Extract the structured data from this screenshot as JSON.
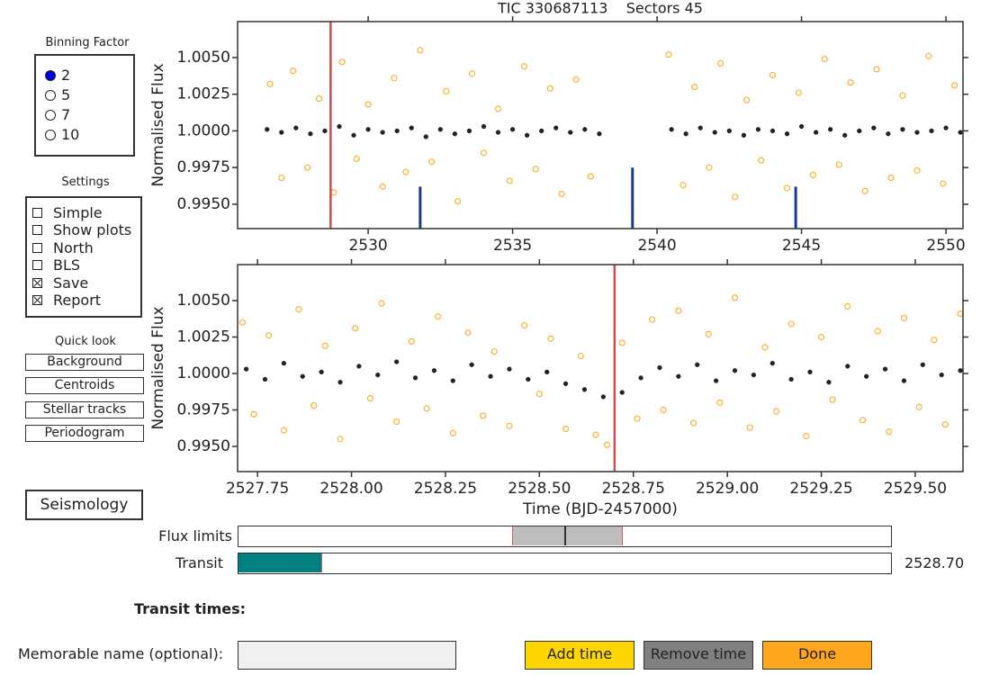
{
  "chart_data": [
    {
      "type": "scatter",
      "title": "TIC 330687113    Sectors 45",
      "ylabel": "Normalised Flux",
      "xlim": [
        2525.48,
        2550.59
      ],
      "ylim": [
        0.99334,
        1.00745
      ],
      "xticks": [
        2530,
        2535,
        2540,
        2545,
        2550
      ],
      "yticks": [
        {
          "value": 0.995,
          "label": "0.9950"
        },
        {
          "value": 0.9975,
          "label": "0.9975"
        },
        {
          "value": 1.0,
          "label": "1.0000"
        },
        {
          "value": 1.0025,
          "label": "1.0025"
        },
        {
          "value": 1.005,
          "label": "1.0050"
        }
      ],
      "series": [
        {
          "color": "#ffb030",
          "marker": "open",
          "x": [
            2526.6,
            2527.0,
            2527.4,
            2527.9,
            2528.3,
            2528.8,
            2529.1,
            2529.6,
            2530.0,
            2530.5,
            2530.9,
            2531.3,
            2531.8,
            2532.2,
            2532.7,
            2533.1,
            2533.6,
            2534.0,
            2534.5,
            2534.9,
            2535.4,
            2535.8,
            2536.3,
            2536.7,
            2537.2,
            2537.7,
            2540.4,
            2540.9,
            2541.3,
            2541.8,
            2542.2,
            2542.7,
            2543.1,
            2543.6,
            2544.0,
            2544.5,
            2544.9,
            2545.4,
            2545.8,
            2546.3,
            2546.7,
            2547.2,
            2547.6,
            2548.1,
            2548.5,
            2549.0,
            2549.4,
            2549.9,
            2550.3
          ],
          "values": [
            1.0032,
            0.9968,
            1.0041,
            0.9975,
            1.0022,
            0.9958,
            1.0047,
            0.9981,
            1.0018,
            0.9962,
            1.0036,
            0.9972,
            1.0055,
            0.9979,
            1.0027,
            0.9952,
            1.0039,
            0.9985,
            1.0015,
            0.9966,
            1.0044,
            0.9974,
            1.0029,
            0.9957,
            1.0035,
            0.9969,
            1.0052,
            0.9963,
            1.003,
            0.9975,
            1.0046,
            0.9955,
            1.0021,
            0.998,
            1.0038,
            0.9961,
            1.0026,
            0.997,
            1.0049,
            0.9977,
            1.0033,
            0.9959,
            1.0042,
            0.9968,
            1.0024,
            0.9973,
            1.0051,
            0.9964,
            1.0031
          ]
        },
        {
          "color": "#222222",
          "marker": "filled",
          "x": [
            2526.5,
            2527.0,
            2527.5,
            2528.0,
            2528.5,
            2529.0,
            2529.5,
            2530.0,
            2530.5,
            2531.0,
            2531.5,
            2532.0,
            2532.5,
            2533.0,
            2533.5,
            2534.0,
            2534.5,
            2535.0,
            2535.5,
            2536.0,
            2536.5,
            2537.0,
            2537.5,
            2538.0,
            2540.5,
            2541.0,
            2541.5,
            2542.0,
            2542.5,
            2543.0,
            2543.5,
            2544.0,
            2544.5,
            2545.0,
            2545.5,
            2546.0,
            2546.5,
            2547.0,
            2547.5,
            2548.0,
            2548.5,
            2549.0,
            2549.5,
            2550.0,
            2550.5
          ],
          "values": [
            1.0001,
            0.9999,
            1.0002,
            0.9998,
            1.0,
            1.0003,
            0.9997,
            1.0001,
            0.9999,
            1.0,
            1.0002,
            0.9996,
            1.0001,
            0.9998,
            1.0,
            1.0003,
            0.9999,
            1.0001,
            0.9997,
            1.0,
            1.0002,
            0.9999,
            1.0001,
            0.9998,
            1.0001,
            0.9998,
            1.0002,
            0.9999,
            1.0,
            0.9997,
            1.0001,
            1.0,
            0.9998,
            1.0003,
            0.9999,
            1.0001,
            0.9997,
            1.0,
            1.0002,
            0.9998,
            1.0001,
            0.9999,
            1.0,
            1.0002,
            0.9999
          ]
        }
      ],
      "vlines": {
        "color": "#c85050",
        "x": [
          2528.7
        ]
      },
      "transit_markers": {
        "color": "#1a3a8a",
        "x": [
          2531.8,
          2539.15,
          2544.8
        ],
        "values": [
          0.9962,
          0.9975,
          0.9962
        ]
      }
    },
    {
      "type": "scatter",
      "ylabel": "Normalised Flux",
      "xlabel": "Time (BJD-2457000)",
      "xlim": [
        2527.697,
        2529.627
      ],
      "ylim": [
        0.99327,
        1.00747
      ],
      "xticks": [
        2527.75,
        {
          "value": 2528.0,
          "label": "2528.00"
        },
        2528.25,
        {
          "value": 2528.5,
          "label": "2528.50"
        },
        2528.75,
        {
          "value": 2529.0,
          "label": "2529.00"
        },
        2529.25,
        {
          "value": 2529.5,
          "label": "2529.50"
        }
      ],
      "yticks": [
        {
          "value": 0.995,
          "label": "0.9950"
        },
        {
          "value": 0.9975,
          "label": "0.9975"
        },
        {
          "value": 1.0,
          "label": "1.0000"
        },
        {
          "value": 1.0025,
          "label": "1.0025"
        },
        {
          "value": 1.005,
          "label": "1.0050"
        }
      ],
      "series": [
        {
          "color": "#ffb030",
          "marker": "open",
          "x": [
            2527.71,
            2527.74,
            2527.78,
            2527.82,
            2527.86,
            2527.9,
            2527.93,
            2527.97,
            2528.01,
            2528.05,
            2528.08,
            2528.12,
            2528.16,
            2528.2,
            2528.23,
            2528.27,
            2528.31,
            2528.35,
            2528.38,
            2528.42,
            2528.46,
            2528.5,
            2528.53,
            2528.57,
            2528.61,
            2528.65,
            2528.68,
            2528.72,
            2528.76,
            2528.8,
            2528.83,
            2528.87,
            2528.91,
            2528.95,
            2528.98,
            2529.02,
            2529.06,
            2529.1,
            2529.13,
            2529.17,
            2529.21,
            2529.25,
            2529.28,
            2529.32,
            2529.36,
            2529.4,
            2529.43,
            2529.47,
            2529.51,
            2529.55,
            2529.58,
            2529.62
          ],
          "values": [
            1.0035,
            0.9972,
            1.0026,
            0.9961,
            1.0044,
            0.9978,
            1.0019,
            0.9955,
            1.0031,
            0.9983,
            1.0048,
            0.9967,
            1.0022,
            0.9976,
            1.0039,
            0.9959,
            1.0028,
            0.9971,
            1.0015,
            0.9964,
            1.0033,
            0.9986,
            1.0024,
            0.9962,
            1.0012,
            0.9958,
            0.9951,
            1.0021,
            0.9969,
            1.0037,
            0.9975,
            1.0043,
            0.9966,
            1.0027,
            0.998,
            1.0052,
            0.9963,
            1.0018,
            0.9974,
            1.0034,
            0.9957,
            1.0025,
            0.9982,
            1.0046,
            0.9968,
            1.0029,
            0.996,
            1.0038,
            0.9977,
            1.0023,
            0.9965,
            1.0041
          ]
        },
        {
          "color": "#222222",
          "marker": "filled",
          "x": [
            2527.72,
            2527.77,
            2527.82,
            2527.87,
            2527.92,
            2527.97,
            2528.02,
            2528.07,
            2528.12,
            2528.17,
            2528.22,
            2528.27,
            2528.32,
            2528.37,
            2528.42,
            2528.47,
            2528.52,
            2528.57,
            2528.62,
            2528.67,
            2528.72,
            2528.77,
            2528.82,
            2528.87,
            2528.92,
            2528.97,
            2529.02,
            2529.07,
            2529.12,
            2529.17,
            2529.22,
            2529.27,
            2529.32,
            2529.37,
            2529.42,
            2529.47,
            2529.52,
            2529.57,
            2529.62
          ],
          "values": [
            1.0003,
            0.9996,
            1.0007,
            0.9998,
            1.0001,
            0.9994,
            1.0005,
            0.9999,
            1.0008,
            0.9997,
            1.0002,
            0.9995,
            1.0006,
            0.9998,
            1.0003,
            0.9996,
            1.0001,
            0.9993,
            0.9989,
            0.9984,
            0.9987,
            0.9997,
            1.0004,
            0.9998,
            1.0006,
            0.9995,
            1.0002,
            0.9999,
            1.0007,
            0.9996,
            1.0001,
            0.9994,
            1.0005,
            0.9998,
            1.0003,
            0.9995,
            1.0006,
            0.9999,
            1.0002
          ]
        }
      ],
      "vlines": {
        "color": "#c85050",
        "x": [
          2528.7
        ]
      }
    }
  ],
  "binning": {
    "title": "Binning Factor",
    "options": [
      "2",
      "5",
      "7",
      "10"
    ],
    "selected": 0
  },
  "settings": {
    "title": "Settings",
    "options": [
      {
        "label": "Simple",
        "checked": false
      },
      {
        "label": "Show plots",
        "checked": false
      },
      {
        "label": "North",
        "checked": false
      },
      {
        "label": "BLS",
        "checked": false
      },
      {
        "label": "Save",
        "checked": true
      },
      {
        "label": "Report",
        "checked": true
      }
    ]
  },
  "quick_look": {
    "title": "Quick look",
    "buttons": [
      "Background",
      "Centroids",
      "Stellar tracks",
      "Periodogram"
    ]
  },
  "seismology": "Seismology",
  "flux_limits": {
    "label": "Flux limits"
  },
  "transit": {
    "label": "Transit",
    "value": "2528.70"
  },
  "transit_times_label": "Transit times:",
  "name_label": "Memorable name (optional):",
  "actions": [
    "Add time",
    "Remove time",
    "Done"
  ]
}
